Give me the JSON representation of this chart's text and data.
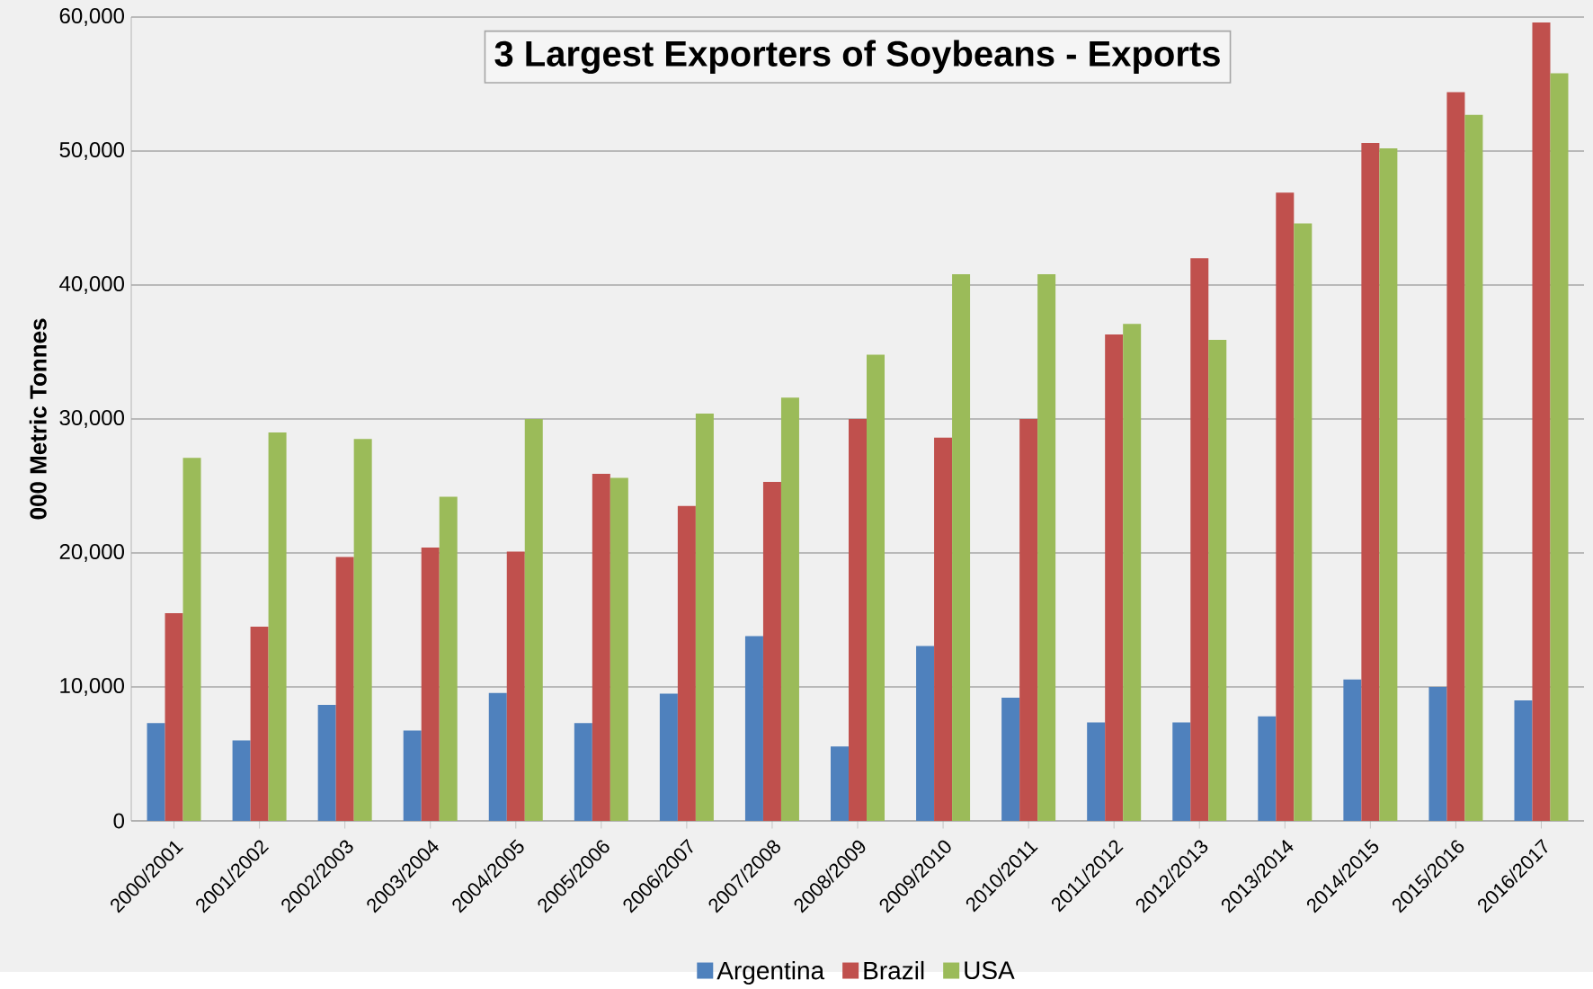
{
  "chart_data": {
    "type": "bar",
    "title": "3 Largest Exporters of Soybeans - Exports",
    "ylabel": "000  Metric Tonnes",
    "categories": [
      "2000/2001",
      "2001/2002",
      "2002/2003",
      "2003/2004",
      "2004/2005",
      "2005/2006",
      "2006/2007",
      "2007/2008",
      "2008/2009",
      "2009/2010",
      "2010/2011",
      "2011/2012",
      "2012/2013",
      "2013/2014",
      "2014/2015",
      "2015/2016",
      "2016/2017"
    ],
    "series": [
      {
        "name": "Argentina",
        "color": "#4f81bd",
        "values": [
          7300,
          6000,
          8650,
          6750,
          9550,
          7300,
          9500,
          13800,
          5550,
          13050,
          9200,
          7350,
          7350,
          7800,
          10550,
          10000,
          9000
        ]
      },
      {
        "name": "Brazil",
        "color": "#c0504d",
        "values": [
          15500,
          14500,
          19700,
          20400,
          20100,
          25900,
          23500,
          25300,
          30000,
          28600,
          30000,
          36300,
          42000,
          46900,
          50600,
          54400,
          59600
        ]
      },
      {
        "name": "USA",
        "color": "#9bbb59",
        "values": [
          27100,
          29000,
          28500,
          24200,
          30000,
          25600,
          30400,
          31600,
          34800,
          40800,
          40800,
          37100,
          35900,
          44600,
          50200,
          52700,
          55800
        ]
      }
    ],
    "ylim": [
      0,
      60000
    ],
    "yticks": [
      {
        "value": 0,
        "label": "0"
      },
      {
        "value": 10000,
        "label": "10,000"
      },
      {
        "value": 20000,
        "label": "20,000"
      },
      {
        "value": 30000,
        "label": "30,000"
      },
      {
        "value": 40000,
        "label": "40,000"
      },
      {
        "value": 50000,
        "label": "50,000"
      },
      {
        "value": 60000,
        "label": "60,000"
      }
    ],
    "grid": "y",
    "legend": "bottom"
  }
}
